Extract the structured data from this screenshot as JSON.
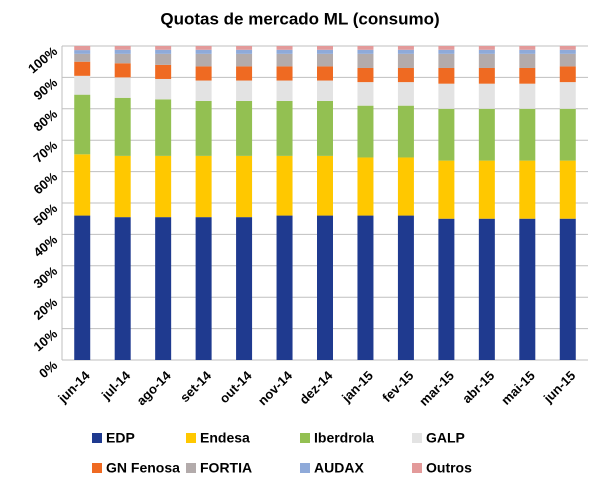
{
  "chart_data": {
    "type": "stacked_bar",
    "title": "Quotas de mercado ML (consumo)",
    "categories": [
      "jun-14",
      "jul-14",
      "ago-14",
      "set-14",
      "out-14",
      "nov-14",
      "dez-14",
      "jan-15",
      "fev-15",
      "mar-15",
      "abr-15",
      "mai-15",
      "jun-15"
    ],
    "series": [
      {
        "name": "EDP",
        "color": "#1f3a8f",
        "values": [
          46,
          45.5,
          45.5,
          45.5,
          45.5,
          46,
          46,
          46,
          46,
          45,
          45,
          45,
          45
        ]
      },
      {
        "name": "Endesa",
        "color": "#ffc800",
        "values": [
          19.5,
          19.5,
          19.5,
          19.5,
          19.5,
          19,
          19,
          18.5,
          18.5,
          18.5,
          18.5,
          18.5,
          18.5
        ]
      },
      {
        "name": "Iberdrola",
        "color": "#93c052",
        "values": [
          19,
          18.5,
          18,
          17.5,
          17.5,
          17.5,
          17.5,
          16.5,
          16.5,
          16.5,
          16.5,
          16.5,
          16.5
        ]
      },
      {
        "name": "GALP",
        "color": "#e3e3e3",
        "values": [
          6,
          6.5,
          6.5,
          6.5,
          6.5,
          6.5,
          6.5,
          7.5,
          7.5,
          8,
          8,
          8,
          8.5
        ]
      },
      {
        "name": "GN Fenosa",
        "color": "#ef6a22",
        "values": [
          4.5,
          4.5,
          4.5,
          4.5,
          4.5,
          4.5,
          4.5,
          4.5,
          4.5,
          5,
          5,
          5,
          5
        ]
      },
      {
        "name": "FORTIA",
        "color": "#b3abab",
        "values": [
          2.5,
          3,
          3.5,
          4,
          4,
          4,
          4,
          4.5,
          4.5,
          4.5,
          4.5,
          4.5,
          4
        ]
      },
      {
        "name": "AUDAX",
        "color": "#8faad9",
        "values": [
          1.2,
          1.3,
          1.3,
          1.3,
          1.3,
          1.3,
          1.3,
          1.3,
          1.3,
          1.3,
          1.3,
          1.3,
          1.3
        ]
      },
      {
        "name": "Outros",
        "color": "#e39a9a",
        "values": [
          1.3,
          1.2,
          1.2,
          1.2,
          1.2,
          1.2,
          1.2,
          1.2,
          1.2,
          1.2,
          1.2,
          1.2,
          1.2
        ]
      }
    ],
    "ylim": [
      0,
      100
    ],
    "yticks": [
      {
        "value": 0,
        "label": "0%"
      },
      {
        "value": 10,
        "label": "10%"
      },
      {
        "value": 20,
        "label": "20%"
      },
      {
        "value": 30,
        "label": "30%"
      },
      {
        "value": 40,
        "label": "40%"
      },
      {
        "value": 50,
        "label": "50%"
      },
      {
        "value": 60,
        "label": "60%"
      },
      {
        "value": 70,
        "label": "70%"
      },
      {
        "value": 80,
        "label": "80%"
      },
      {
        "value": 90,
        "label": "90%"
      },
      {
        "value": 100,
        "label": "100%"
      }
    ],
    "grid": true
  }
}
